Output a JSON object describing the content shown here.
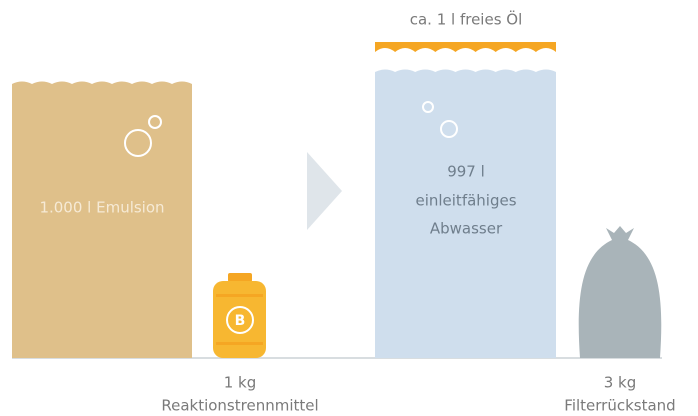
{
  "oil_label": "ca. 1 l freies Öl",
  "emulsion_label": "1.000 l Emulsion",
  "water_label": [
    "997 l",
    "einleitfähiges",
    "Abwasser"
  ],
  "canister_letter": "B",
  "agent_label": {
    "amount": "1 kg",
    "name": "Reaktionstrennmittel"
  },
  "residue_label": {
    "amount": "3 kg",
    "name": "Filterrückstand"
  }
}
